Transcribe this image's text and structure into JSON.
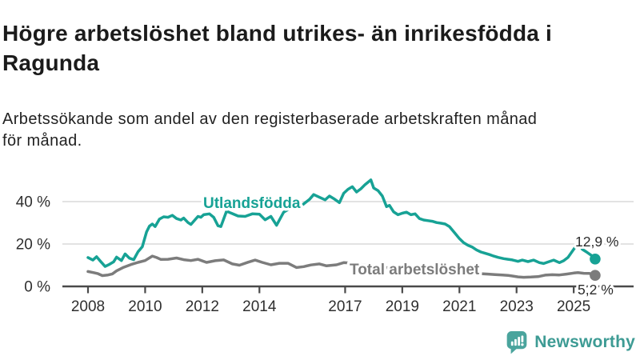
{
  "header": {
    "title": "Högre arbetslöshet bland utrikes- än inrikesfödda i Ragunda",
    "subtitle": "Arbetssökande som andel av den registerbaserade arbetskraften månad för månad."
  },
  "footer": {
    "brand": "Newsworthy"
  },
  "colors": {
    "series_foreign_born": "#17a295",
    "series_total": "#7c7c7c",
    "axis": "#4a4a4a",
    "grid": "#dadada",
    "tick_label": "#2f2f2f",
    "value_label": "#2b2b2b",
    "brand_text": "#3d9b94",
    "brand_icon": "#4aa49d",
    "background": "#ffffff"
  },
  "chart_data": {
    "type": "line",
    "unit": "%",
    "x_axis": {
      "ticks": [
        2008,
        2010,
        2012,
        2014,
        2017,
        2019,
        2021,
        2023,
        2025
      ],
      "range": [
        2008,
        2026
      ]
    },
    "y_axis": {
      "ticks": [
        {
          "value": 0,
          "label": "0 %"
        },
        {
          "value": 20,
          "label": "20 %"
        },
        {
          "value": 40,
          "label": "40 %"
        }
      ],
      "range": [
        0,
        52
      ],
      "grid": true
    },
    "series": [
      {
        "name": "Utlandsfödda",
        "color": "#17a295",
        "end_label": "12,9 %",
        "end_value": 12.9,
        "points": [
          [
            2008.0,
            13.6
          ],
          [
            2008.17,
            12.4
          ],
          [
            2008.3,
            14.0
          ],
          [
            2008.45,
            11.6
          ],
          [
            2008.6,
            9.4
          ],
          [
            2008.75,
            10.4
          ],
          [
            2008.9,
            11.6
          ],
          [
            2009.0,
            13.8
          ],
          [
            2009.17,
            12.2
          ],
          [
            2009.3,
            15.3
          ],
          [
            2009.45,
            13.3
          ],
          [
            2009.6,
            12.6
          ],
          [
            2009.75,
            16.3
          ],
          [
            2009.9,
            18.7
          ],
          [
            2010.05,
            25.7
          ],
          [
            2010.15,
            28.4
          ],
          [
            2010.25,
            29.4
          ],
          [
            2010.35,
            28.2
          ],
          [
            2010.5,
            31.7
          ],
          [
            2010.65,
            32.8
          ],
          [
            2010.8,
            32.6
          ],
          [
            2010.95,
            33.5
          ],
          [
            2011.1,
            32.0
          ],
          [
            2011.25,
            31.3
          ],
          [
            2011.35,
            32.2
          ],
          [
            2011.5,
            30.1
          ],
          [
            2011.6,
            29.2
          ],
          [
            2011.7,
            30.7
          ],
          [
            2011.85,
            33.0
          ],
          [
            2011.95,
            32.6
          ],
          [
            2012.05,
            33.8
          ],
          [
            2012.25,
            34.2
          ],
          [
            2012.4,
            32.6
          ],
          [
            2012.55,
            28.6
          ],
          [
            2012.65,
            28.2
          ],
          [
            2012.85,
            35.5
          ],
          [
            2013.0,
            34.6
          ],
          [
            2013.25,
            33.2
          ],
          [
            2013.5,
            33.0
          ],
          [
            2013.75,
            34.2
          ],
          [
            2014.0,
            34.0
          ],
          [
            2014.2,
            31.4
          ],
          [
            2014.4,
            33.0
          ],
          [
            2014.6,
            28.8
          ],
          [
            2014.85,
            35.0
          ],
          [
            2015.0,
            36.2
          ],
          [
            2015.25,
            36.8
          ],
          [
            2015.5,
            38.4
          ],
          [
            2015.75,
            41.0
          ],
          [
            2015.9,
            43.3
          ],
          [
            2016.1,
            42.0
          ],
          [
            2016.3,
            40.8
          ],
          [
            2016.45,
            42.6
          ],
          [
            2016.6,
            41.4
          ],
          [
            2016.8,
            39.5
          ],
          [
            2016.95,
            43.9
          ],
          [
            2017.1,
            45.8
          ],
          [
            2017.25,
            47.0
          ],
          [
            2017.4,
            44.5
          ],
          [
            2017.55,
            46.0
          ],
          [
            2017.7,
            48.0
          ],
          [
            2017.9,
            50.2
          ],
          [
            2018.0,
            46.4
          ],
          [
            2018.15,
            45.2
          ],
          [
            2018.3,
            42.6
          ],
          [
            2018.45,
            37.6
          ],
          [
            2018.55,
            38.2
          ],
          [
            2018.7,
            35.1
          ],
          [
            2018.85,
            33.8
          ],
          [
            2019.0,
            34.5
          ],
          [
            2019.15,
            35.0
          ],
          [
            2019.3,
            33.8
          ],
          [
            2019.45,
            34.2
          ],
          [
            2019.6,
            32.0
          ],
          [
            2019.75,
            31.3
          ],
          [
            2019.9,
            31.0
          ],
          [
            2020.05,
            30.7
          ],
          [
            2020.2,
            30.1
          ],
          [
            2020.35,
            29.8
          ],
          [
            2020.5,
            29.4
          ],
          [
            2020.65,
            28.2
          ],
          [
            2020.85,
            25.0
          ],
          [
            2021.0,
            22.5
          ],
          [
            2021.15,
            20.6
          ],
          [
            2021.3,
            19.4
          ],
          [
            2021.45,
            18.5
          ],
          [
            2021.6,
            17.2
          ],
          [
            2021.75,
            16.2
          ],
          [
            2021.9,
            15.6
          ],
          [
            2022.05,
            15.0
          ],
          [
            2022.2,
            14.3
          ],
          [
            2022.35,
            13.7
          ],
          [
            2022.55,
            13.1
          ],
          [
            2022.7,
            12.8
          ],
          [
            2022.85,
            12.5
          ],
          [
            2023.05,
            11.8
          ],
          [
            2023.2,
            12.4
          ],
          [
            2023.4,
            11.7
          ],
          [
            2023.6,
            12.4
          ],
          [
            2023.8,
            11.2
          ],
          [
            2023.95,
            10.8
          ],
          [
            2024.1,
            11.5
          ],
          [
            2024.3,
            12.4
          ],
          [
            2024.5,
            11.2
          ],
          [
            2024.65,
            12.1
          ],
          [
            2024.8,
            13.7
          ],
          [
            2024.9,
            15.6
          ],
          [
            2025.0,
            17.5
          ],
          [
            2025.1,
            19.4
          ],
          [
            2025.17,
            20.6
          ],
          [
            2025.3,
            17.5
          ],
          [
            2025.45,
            16.2
          ],
          [
            2025.6,
            14.8
          ],
          [
            2025.7,
            13.8
          ],
          [
            2025.75,
            12.9
          ]
        ]
      },
      {
        "name": "Total arbetslöshet",
        "color": "#7c7c7c",
        "end_label": "5,2 %",
        "end_value": 5.2,
        "points": [
          [
            2008.0,
            7.0
          ],
          [
            2008.2,
            6.5
          ],
          [
            2008.35,
            6.0
          ],
          [
            2008.5,
            5.1
          ],
          [
            2008.7,
            5.4
          ],
          [
            2008.85,
            5.9
          ],
          [
            2009.0,
            7.3
          ],
          [
            2009.25,
            9.0
          ],
          [
            2009.5,
            10.3
          ],
          [
            2009.75,
            11.3
          ],
          [
            2010.0,
            12.2
          ],
          [
            2010.25,
            14.3
          ],
          [
            2010.4,
            13.6
          ],
          [
            2010.55,
            12.7
          ],
          [
            2010.8,
            12.8
          ],
          [
            2011.1,
            13.4
          ],
          [
            2011.35,
            12.6
          ],
          [
            2011.6,
            12.2
          ],
          [
            2011.85,
            12.8
          ],
          [
            2012.15,
            11.3
          ],
          [
            2012.45,
            12.1
          ],
          [
            2012.75,
            12.5
          ],
          [
            2013.05,
            10.6
          ],
          [
            2013.3,
            10.0
          ],
          [
            2013.6,
            11.4
          ],
          [
            2013.85,
            12.4
          ],
          [
            2014.1,
            11.3
          ],
          [
            2014.4,
            10.2
          ],
          [
            2014.7,
            10.9
          ],
          [
            2015.0,
            10.9
          ],
          [
            2015.3,
            8.9
          ],
          [
            2015.55,
            9.3
          ],
          [
            2015.8,
            10.1
          ],
          [
            2016.1,
            10.6
          ],
          [
            2016.35,
            9.7
          ],
          [
            2016.7,
            10.2
          ],
          [
            2016.95,
            11.2
          ],
          [
            2017.15,
            11.0
          ],
          [
            2017.5,
            10.4
          ],
          [
            2017.75,
            10.0
          ],
          [
            2018.0,
            9.6
          ],
          [
            2018.25,
            9.2
          ],
          [
            2018.5,
            8.8
          ],
          [
            2018.75,
            8.5
          ],
          [
            2019.0,
            8.2
          ],
          [
            2019.25,
            7.9
          ],
          [
            2019.5,
            7.7
          ],
          [
            2019.75,
            7.5
          ],
          [
            2020.0,
            7.4
          ],
          [
            2020.25,
            7.6
          ],
          [
            2020.5,
            7.5
          ],
          [
            2020.75,
            7.2
          ],
          [
            2021.0,
            6.9
          ],
          [
            2021.25,
            6.6
          ],
          [
            2021.5,
            6.3
          ],
          [
            2021.75,
            6.0
          ],
          [
            2022.0,
            5.8
          ],
          [
            2022.25,
            5.6
          ],
          [
            2022.5,
            5.4
          ],
          [
            2022.7,
            5.2
          ],
          [
            2022.85,
            4.9
          ],
          [
            2023.05,
            4.5
          ],
          [
            2023.25,
            4.3
          ],
          [
            2023.5,
            4.4
          ],
          [
            2023.75,
            4.6
          ],
          [
            2024.0,
            5.3
          ],
          [
            2024.25,
            5.5
          ],
          [
            2024.5,
            5.4
          ],
          [
            2024.75,
            5.8
          ],
          [
            2025.0,
            6.3
          ],
          [
            2025.15,
            6.5
          ],
          [
            2025.35,
            6.2
          ],
          [
            2025.55,
            6.1
          ],
          [
            2025.75,
            5.2
          ]
        ]
      }
    ]
  }
}
